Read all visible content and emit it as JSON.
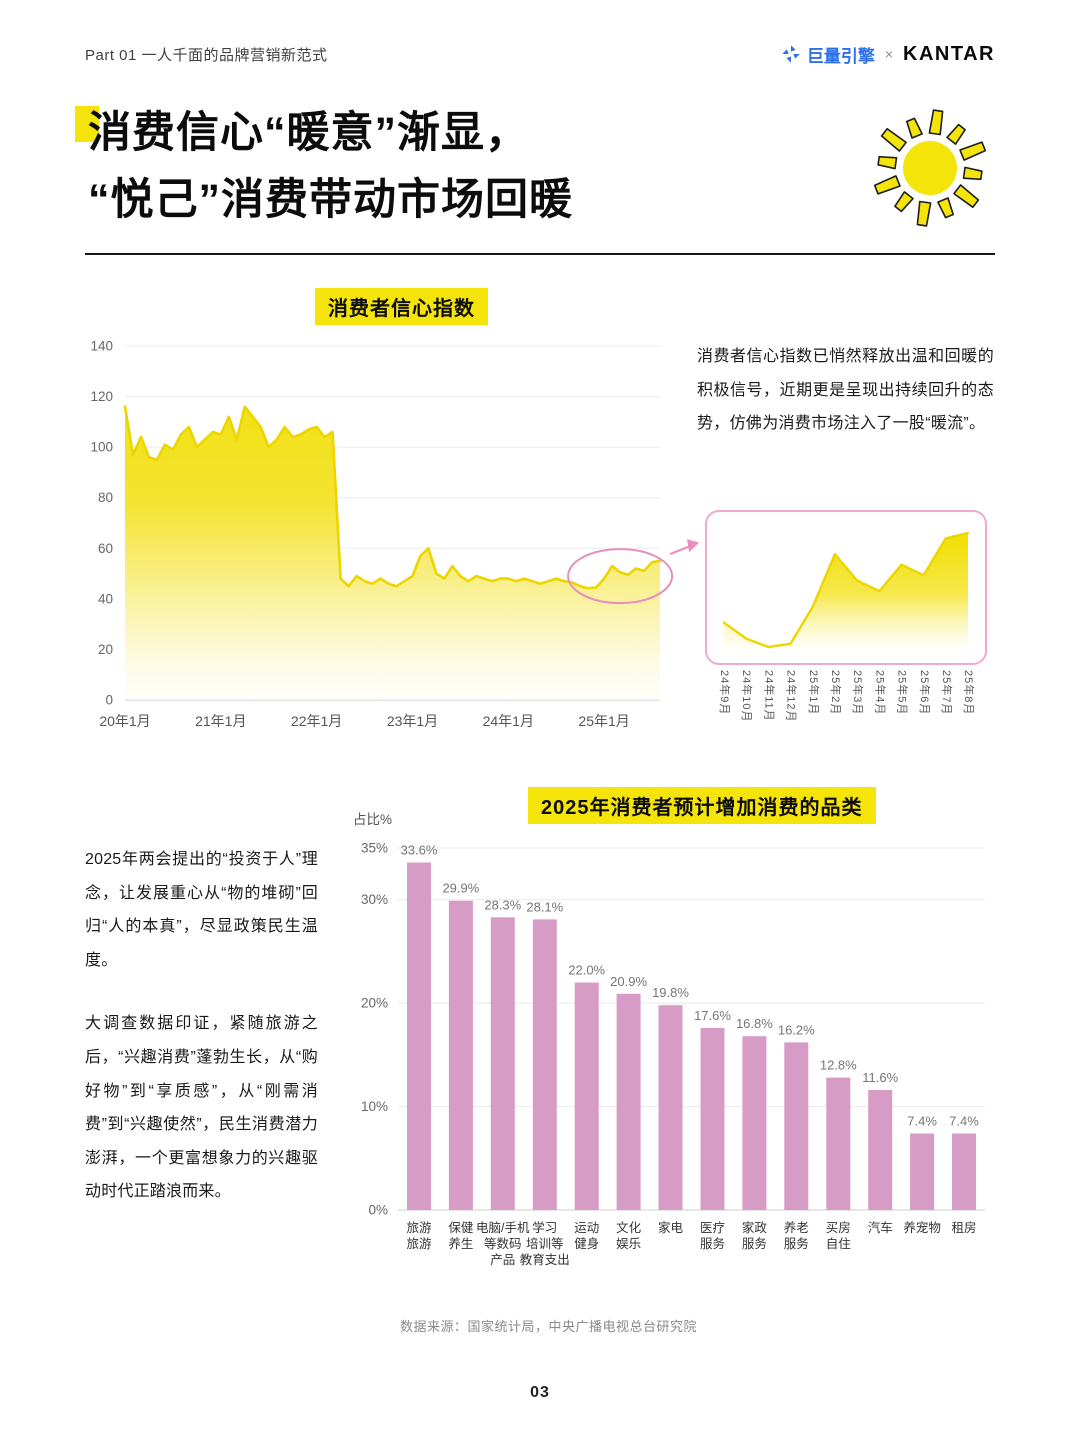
{
  "page": {
    "number": "03"
  },
  "header": {
    "breadcrumb": "Part 01 一人千面的品牌营销新范式",
    "brand_left": "巨量引擎",
    "brand_sep": "×",
    "brand_right": "KANTAR"
  },
  "title": {
    "line1": "消费信心“暖意”渐显，",
    "line2": "“悦己”消费带动市场回暖"
  },
  "section1": {
    "description": "消费者信心指数已悄然释放出温和回暖的积极信号，近期更是呈现出持续回升的态势，仿佛为消费市场注入了一股“暖流”。"
  },
  "section2": {
    "paragraph1": "2025年两会提出的“投资于人”理念，让发展重心从“物的堆砌”回归“人的本真”，尽显政策民生温度。",
    "paragraph2": "大调查数据印证，紧随旅游之后，“兴趣消费”蓬勃生长，从“购好物”到“享质感”，从“刚需消费”到“兴趣使然”，民生消费潜力澎湃，一个更富想象力的兴趣驱动时代正踏浪而来。",
    "source": "数据来源：国家统计局，中央广播电视总台研究院"
  },
  "colors": {
    "accent_yellow": "#F5E409",
    "line_yellow": "#EDD500",
    "bar_pink": "#D79CC5",
    "annotation_pink": "#E78FBE",
    "inset_border_pink": "#F0A9CF"
  },
  "chart_data": [
    {
      "id": "consumer-confidence-index",
      "type": "area",
      "title": "消费者信心指数",
      "x_start": "2020-01",
      "x_end": "2025-08",
      "x_tick_labels": [
        "20年1月",
        "21年1月",
        "22年1月",
        "23年1月",
        "24年1月",
        "25年1月"
      ],
      "x_tick_indices": [
        0,
        12,
        24,
        36,
        48,
        60
      ],
      "ylim": [
        0,
        140
      ],
      "y_ticks": [
        0,
        20,
        40,
        60,
        80,
        100,
        120,
        140
      ],
      "grid": true,
      "values": [
        116,
        97,
        104,
        96,
        95,
        101,
        99,
        105,
        108,
        100,
        103,
        106,
        105,
        112,
        103,
        116,
        112,
        108,
        100,
        103,
        108,
        104,
        105,
        107,
        108,
        104,
        106,
        48,
        45,
        49,
        47,
        46,
        48,
        46,
        45,
        47,
        49,
        57,
        60,
        50,
        48,
        53,
        49,
        47,
        49,
        48,
        47,
        48,
        48,
        47,
        48,
        47,
        46,
        47,
        48,
        47,
        46.5,
        45,
        44.2,
        44.5,
        48,
        53,
        50.5,
        49.5,
        52,
        51,
        54.5,
        55
      ]
    },
    {
      "id": "consumer-confidence-zoom",
      "type": "area",
      "title": "",
      "x_tick_labels": [
        "24年9月",
        "24年10月",
        "24年11月",
        "24年12月",
        "25年1月",
        "25年2月",
        "25年3月",
        "25年4月",
        "25年5月",
        "25年6月",
        "25年7月",
        "25年8月"
      ],
      "values": [
        46.5,
        45,
        44.2,
        44.5,
        48,
        53,
        50.5,
        49.5,
        52,
        51,
        54.5,
        55
      ]
    },
    {
      "id": "expected-spending-increase-2025",
      "type": "bar",
      "title": "2025年消费者预计增加消费的品类",
      "ylabel": "占比%",
      "ylim": [
        0,
        35
      ],
      "y_ticks": [
        0,
        10,
        20,
        30,
        35
      ],
      "grid": true,
      "categories": [
        "旅游|旅游",
        "保健|养生",
        "电脑/手机|等数码|产品",
        "学习|培训等|教育支出",
        "运动|健身",
        "文化|娱乐",
        "家电",
        "医疗|服务",
        "家政|服务",
        "养老|服务",
        "买房|自住",
        "汽车",
        "养宠物",
        "租房"
      ],
      "values": [
        33.6,
        29.9,
        28.3,
        28.1,
        22.0,
        20.9,
        19.8,
        17.6,
        16.8,
        16.2,
        12.8,
        11.6,
        7.4,
        7.4
      ]
    }
  ]
}
